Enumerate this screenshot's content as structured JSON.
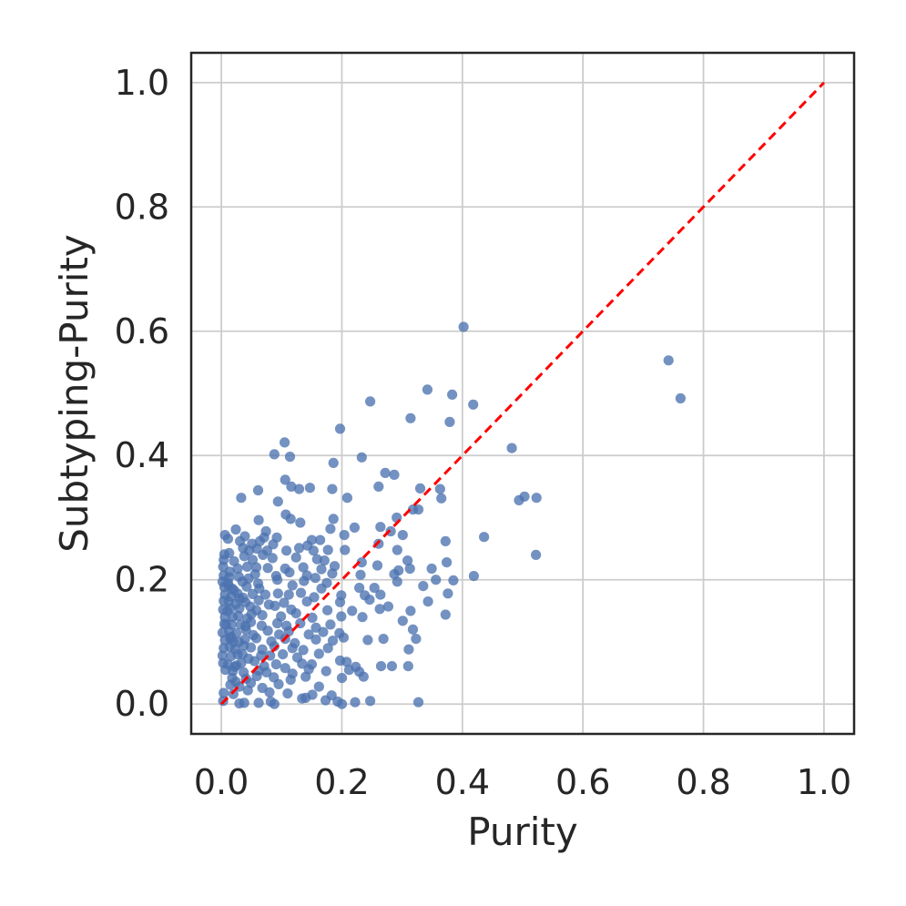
{
  "chart_data": {
    "type": "scatter",
    "title": "",
    "xlabel": "Purity",
    "ylabel": "Subtyping-Purity",
    "xlim": [
      -0.05,
      1.05
    ],
    "ylim": [
      -0.048,
      1.048
    ],
    "xticks": [
      "0.0",
      "0.2",
      "0.4",
      "0.6",
      "0.8",
      "1.0"
    ],
    "yticks": [
      "0.0",
      "0.2",
      "0.4",
      "0.6",
      "0.8",
      "1.0"
    ],
    "grid": true,
    "legend": "none",
    "point_color": "#4c72b0",
    "reference_line": {
      "from": [
        0,
        0
      ],
      "to": [
        1,
        1
      ],
      "style": "dashed",
      "color": "#ff0000"
    },
    "points": [
      [
        0.402,
        0.607
      ],
      [
        0.742,
        0.553
      ],
      [
        0.762,
        0.492
      ],
      [
        0.342,
        0.506
      ],
      [
        0.383,
        0.498
      ],
      [
        0.247,
        0.487
      ],
      [
        0.418,
        0.482
      ],
      [
        0.314,
        0.46
      ],
      [
        0.379,
        0.454
      ],
      [
        0.197,
        0.443
      ],
      [
        0.482,
        0.412
      ],
      [
        0.105,
        0.421
      ],
      [
        0.088,
        0.402
      ],
      [
        0.114,
        0.398
      ],
      [
        0.233,
        0.397
      ],
      [
        0.186,
        0.388
      ],
      [
        0.272,
        0.372
      ],
      [
        0.287,
        0.369
      ],
      [
        0.106,
        0.361
      ],
      [
        0.116,
        0.35
      ],
      [
        0.261,
        0.35
      ],
      [
        0.129,
        0.346
      ],
      [
        0.147,
        0.348
      ],
      [
        0.33,
        0.347
      ],
      [
        0.363,
        0.346
      ],
      [
        0.184,
        0.346
      ],
      [
        0.061,
        0.344
      ],
      [
        0.503,
        0.334
      ],
      [
        0.523,
        0.332
      ],
      [
        0.494,
        0.328
      ],
      [
        0.033,
        0.332
      ],
      [
        0.094,
        0.326
      ],
      [
        0.209,
        0.332
      ],
      [
        0.365,
        0.331
      ],
      [
        0.327,
        0.313
      ],
      [
        0.318,
        0.313
      ],
      [
        0.107,
        0.305
      ],
      [
        0.115,
        0.298
      ],
      [
        0.131,
        0.292
      ],
      [
        0.186,
        0.298
      ],
      [
        0.291,
        0.3
      ],
      [
        0.062,
        0.296
      ],
      [
        0.264,
        0.285
      ],
      [
        0.221,
        0.284
      ],
      [
        0.181,
        0.282
      ],
      [
        0.204,
        0.272
      ],
      [
        0.301,
        0.272
      ],
      [
        0.281,
        0.278
      ],
      [
        0.436,
        0.269
      ],
      [
        0.006,
        0.272
      ],
      [
        0.039,
        0.27
      ],
      [
        0.024,
        0.281
      ],
      [
        0.074,
        0.278
      ],
      [
        0.071,
        0.268
      ],
      [
        0.092,
        0.268
      ],
      [
        0.15,
        0.264
      ],
      [
        0.011,
        0.266
      ],
      [
        0.031,
        0.262
      ],
      [
        0.051,
        0.258
      ],
      [
        0.064,
        0.262
      ],
      [
        0.086,
        0.257
      ],
      [
        0.164,
        0.264
      ],
      [
        0.372,
        0.262
      ],
      [
        0.143,
        0.255
      ],
      [
        0.129,
        0.251
      ],
      [
        0.261,
        0.258
      ],
      [
        0.013,
        0.243
      ],
      [
        0.005,
        0.241
      ],
      [
        0.036,
        0.251
      ],
      [
        0.046,
        0.247
      ],
      [
        0.059,
        0.25
      ],
      [
        0.076,
        0.247
      ],
      [
        0.108,
        0.247
      ],
      [
        0.153,
        0.247
      ],
      [
        0.177,
        0.248
      ],
      [
        0.205,
        0.248
      ],
      [
        0.292,
        0.248
      ],
      [
        0.522,
        0.24
      ],
      [
        0.004,
        0.232
      ],
      [
        0.021,
        0.23
      ],
      [
        0.038,
        0.238
      ],
      [
        0.052,
        0.232
      ],
      [
        0.069,
        0.24
      ],
      [
        0.085,
        0.235
      ],
      [
        0.124,
        0.236
      ],
      [
        0.159,
        0.233
      ],
      [
        0.171,
        0.231
      ],
      [
        0.233,
        0.228
      ],
      [
        0.309,
        0.231
      ],
      [
        0.374,
        0.228
      ],
      [
        0.003,
        0.221
      ],
      [
        0.014,
        0.213
      ],
      [
        0.027,
        0.218
      ],
      [
        0.043,
        0.221
      ],
      [
        0.058,
        0.22
      ],
      [
        0.077,
        0.219
      ],
      [
        0.106,
        0.218
      ],
      [
        0.113,
        0.212
      ],
      [
        0.136,
        0.22
      ],
      [
        0.166,
        0.217
      ],
      [
        0.188,
        0.222
      ],
      [
        0.259,
        0.223
      ],
      [
        0.294,
        0.215
      ],
      [
        0.313,
        0.218
      ],
      [
        0.349,
        0.218
      ],
      [
        0.004,
        0.207
      ],
      [
        0.013,
        0.204
      ],
      [
        0.029,
        0.205
      ],
      [
        0.045,
        0.202
      ],
      [
        0.056,
        0.209
      ],
      [
        0.091,
        0.206
      ],
      [
        0.142,
        0.207
      ],
      [
        0.156,
        0.203
      ],
      [
        0.184,
        0.21
      ],
      [
        0.231,
        0.208
      ],
      [
        0.287,
        0.209
      ],
      [
        0.419,
        0.206
      ],
      [
        0.002,
        0.197
      ],
      [
        0.011,
        0.195
      ],
      [
        0.035,
        0.197
      ],
      [
        0.061,
        0.194
      ],
      [
        0.093,
        0.2
      ],
      [
        0.137,
        0.198
      ],
      [
        0.175,
        0.195
      ],
      [
        0.292,
        0.197
      ],
      [
        0.385,
        0.199
      ],
      [
        0.356,
        0.2
      ],
      [
        0.005,
        0.188
      ],
      [
        0.018,
        0.186
      ],
      [
        0.021,
        0.183
      ],
      [
        0.042,
        0.189
      ],
      [
        0.063,
        0.186
      ],
      [
        0.118,
        0.191
      ],
      [
        0.166,
        0.186
      ],
      [
        0.229,
        0.187
      ],
      [
        0.254,
        0.187
      ],
      [
        0.335,
        0.19
      ],
      [
        0.006,
        0.176
      ],
      [
        0.016,
        0.173
      ],
      [
        0.027,
        0.178
      ],
      [
        0.036,
        0.171
      ],
      [
        0.052,
        0.177
      ],
      [
        0.073,
        0.176
      ],
      [
        0.094,
        0.178
      ],
      [
        0.112,
        0.176
      ],
      [
        0.132,
        0.179
      ],
      [
        0.154,
        0.172
      ],
      [
        0.199,
        0.175
      ],
      [
        0.238,
        0.175
      ],
      [
        0.264,
        0.176
      ],
      [
        0.376,
        0.178
      ],
      [
        0.004,
        0.166
      ],
      [
        0.012,
        0.165
      ],
      [
        0.024,
        0.161
      ],
      [
        0.04,
        0.164
      ],
      [
        0.062,
        0.167
      ],
      [
        0.079,
        0.16
      ],
      [
        0.104,
        0.163
      ],
      [
        0.142,
        0.165
      ],
      [
        0.197,
        0.164
      ],
      [
        0.246,
        0.168
      ],
      [
        0.314,
        0.15
      ],
      [
        0.343,
        0.165
      ],
      [
        0.003,
        0.152
      ],
      [
        0.015,
        0.154
      ],
      [
        0.03,
        0.154
      ],
      [
        0.048,
        0.157
      ],
      [
        0.058,
        0.151
      ],
      [
        0.089,
        0.158
      ],
      [
        0.116,
        0.152
      ],
      [
        0.176,
        0.151
      ],
      [
        0.217,
        0.15
      ],
      [
        0.263,
        0.153
      ],
      [
        0.277,
        0.157
      ],
      [
        0.372,
        0.144
      ],
      [
        0.006,
        0.14
      ],
      [
        0.019,
        0.14
      ],
      [
        0.028,
        0.142
      ],
      [
        0.043,
        0.138
      ],
      [
        0.068,
        0.143
      ],
      [
        0.099,
        0.141
      ],
      [
        0.124,
        0.146
      ],
      [
        0.151,
        0.139
      ],
      [
        0.199,
        0.141
      ],
      [
        0.234,
        0.14
      ],
      [
        0.301,
        0.134
      ],
      [
        0.005,
        0.129
      ],
      [
        0.017,
        0.128
      ],
      [
        0.032,
        0.128
      ],
      [
        0.049,
        0.132
      ],
      [
        0.067,
        0.126
      ],
      [
        0.093,
        0.13
      ],
      [
        0.108,
        0.126
      ],
      [
        0.131,
        0.13
      ],
      [
        0.157,
        0.123
      ],
      [
        0.181,
        0.128
      ],
      [
        0.002,
        0.115
      ],
      [
        0.013,
        0.117
      ],
      [
        0.025,
        0.114
      ],
      [
        0.041,
        0.119
      ],
      [
        0.053,
        0.111
      ],
      [
        0.077,
        0.118
      ],
      [
        0.096,
        0.112
      ],
      [
        0.112,
        0.117
      ],
      [
        0.145,
        0.112
      ],
      [
        0.169,
        0.116
      ],
      [
        0.196,
        0.114
      ],
      [
        0.318,
        0.12
      ],
      [
        0.006,
        0.103
      ],
      [
        0.015,
        0.105
      ],
      [
        0.029,
        0.1
      ],
      [
        0.039,
        0.104
      ],
      [
        0.058,
        0.106
      ],
      [
        0.083,
        0.101
      ],
      [
        0.106,
        0.105
      ],
      [
        0.122,
        0.098
      ],
      [
        0.157,
        0.104
      ],
      [
        0.185,
        0.102
      ],
      [
        0.203,
        0.107
      ],
      [
        0.243,
        0.103
      ],
      [
        0.269,
        0.105
      ],
      [
        0.323,
        0.105
      ],
      [
        0.004,
        0.09
      ],
      [
        0.014,
        0.092
      ],
      [
        0.023,
        0.088
      ],
      [
        0.037,
        0.094
      ],
      [
        0.049,
        0.091
      ],
      [
        0.068,
        0.088
      ],
      [
        0.088,
        0.093
      ],
      [
        0.118,
        0.09
      ],
      [
        0.136,
        0.087
      ],
      [
        0.177,
        0.09
      ],
      [
        0.311,
        0.088
      ],
      [
        0.002,
        0.078
      ],
      [
        0.016,
        0.077
      ],
      [
        0.027,
        0.08
      ],
      [
        0.045,
        0.073
      ],
      [
        0.066,
        0.078
      ],
      [
        0.081,
        0.078
      ],
      [
        0.102,
        0.08
      ],
      [
        0.126,
        0.075
      ],
      [
        0.162,
        0.081
      ],
      [
        0.197,
        0.07
      ],
      [
        0.003,
        0.066
      ],
      [
        0.011,
        0.064
      ],
      [
        0.025,
        0.062
      ],
      [
        0.033,
        0.066
      ],
      [
        0.055,
        0.069
      ],
      [
        0.071,
        0.061
      ],
      [
        0.091,
        0.064
      ],
      [
        0.134,
        0.065
      ],
      [
        0.15,
        0.064
      ],
      [
        0.208,
        0.068
      ],
      [
        0.223,
        0.06
      ],
      [
        0.265,
        0.061
      ],
      [
        0.283,
        0.061
      ],
      [
        0.31,
        0.061
      ],
      [
        0.007,
        0.055
      ],
      [
        0.019,
        0.053
      ],
      [
        0.037,
        0.051
      ],
      [
        0.062,
        0.054
      ],
      [
        0.075,
        0.051
      ],
      [
        0.106,
        0.058
      ],
      [
        0.118,
        0.049
      ],
      [
        0.145,
        0.056
      ],
      [
        0.174,
        0.053
      ],
      [
        0.212,
        0.055
      ],
      [
        0.229,
        0.052
      ],
      [
        0.018,
        0.042
      ],
      [
        0.024,
        0.036
      ],
      [
        0.041,
        0.041
      ],
      [
        0.059,
        0.045
      ],
      [
        0.087,
        0.043
      ],
      [
        0.115,
        0.039
      ],
      [
        0.14,
        0.044
      ],
      [
        0.2,
        0.042
      ],
      [
        0.236,
        0.044
      ],
      [
        0.015,
        0.031
      ],
      [
        0.03,
        0.028
      ],
      [
        0.049,
        0.034
      ],
      [
        0.068,
        0.026
      ],
      [
        0.095,
        0.032
      ],
      [
        0.162,
        0.028
      ],
      [
        0.004,
        0.018
      ],
      [
        0.02,
        0.016
      ],
      [
        0.044,
        0.022
      ],
      [
        0.08,
        0.019
      ],
      [
        0.11,
        0.017
      ],
      [
        0.151,
        0.015
      ],
      [
        0.183,
        0.014
      ],
      [
        0.003,
        0.005
      ],
      [
        0.03,
        0.001
      ],
      [
        0.038,
        0.002
      ],
      [
        0.062,
        0.002
      ],
      [
        0.082,
        0.004
      ],
      [
        0.134,
        0.009
      ],
      [
        0.173,
        0.006
      ],
      [
        0.193,
        0.004
      ],
      [
        0.222,
        0.003
      ],
      [
        0.247,
        0.005
      ],
      [
        0.327,
        0.003
      ],
      [
        0.088,
        0.0
      ],
      [
        0.14,
        0.01
      ],
      [
        0.2,
        0.0
      ],
      [
        0.008,
        0.128
      ],
      [
        0.01,
        0.15
      ],
      [
        0.02,
        0.1
      ],
      [
        0.03,
        0.17
      ],
      [
        0.012,
        0.19
      ],
      [
        0.035,
        0.08
      ],
      [
        0.05,
        0.145
      ],
      [
        0.022,
        0.06
      ],
      [
        0.04,
        0.125
      ],
      [
        0.016,
        0.108
      ]
    ]
  }
}
